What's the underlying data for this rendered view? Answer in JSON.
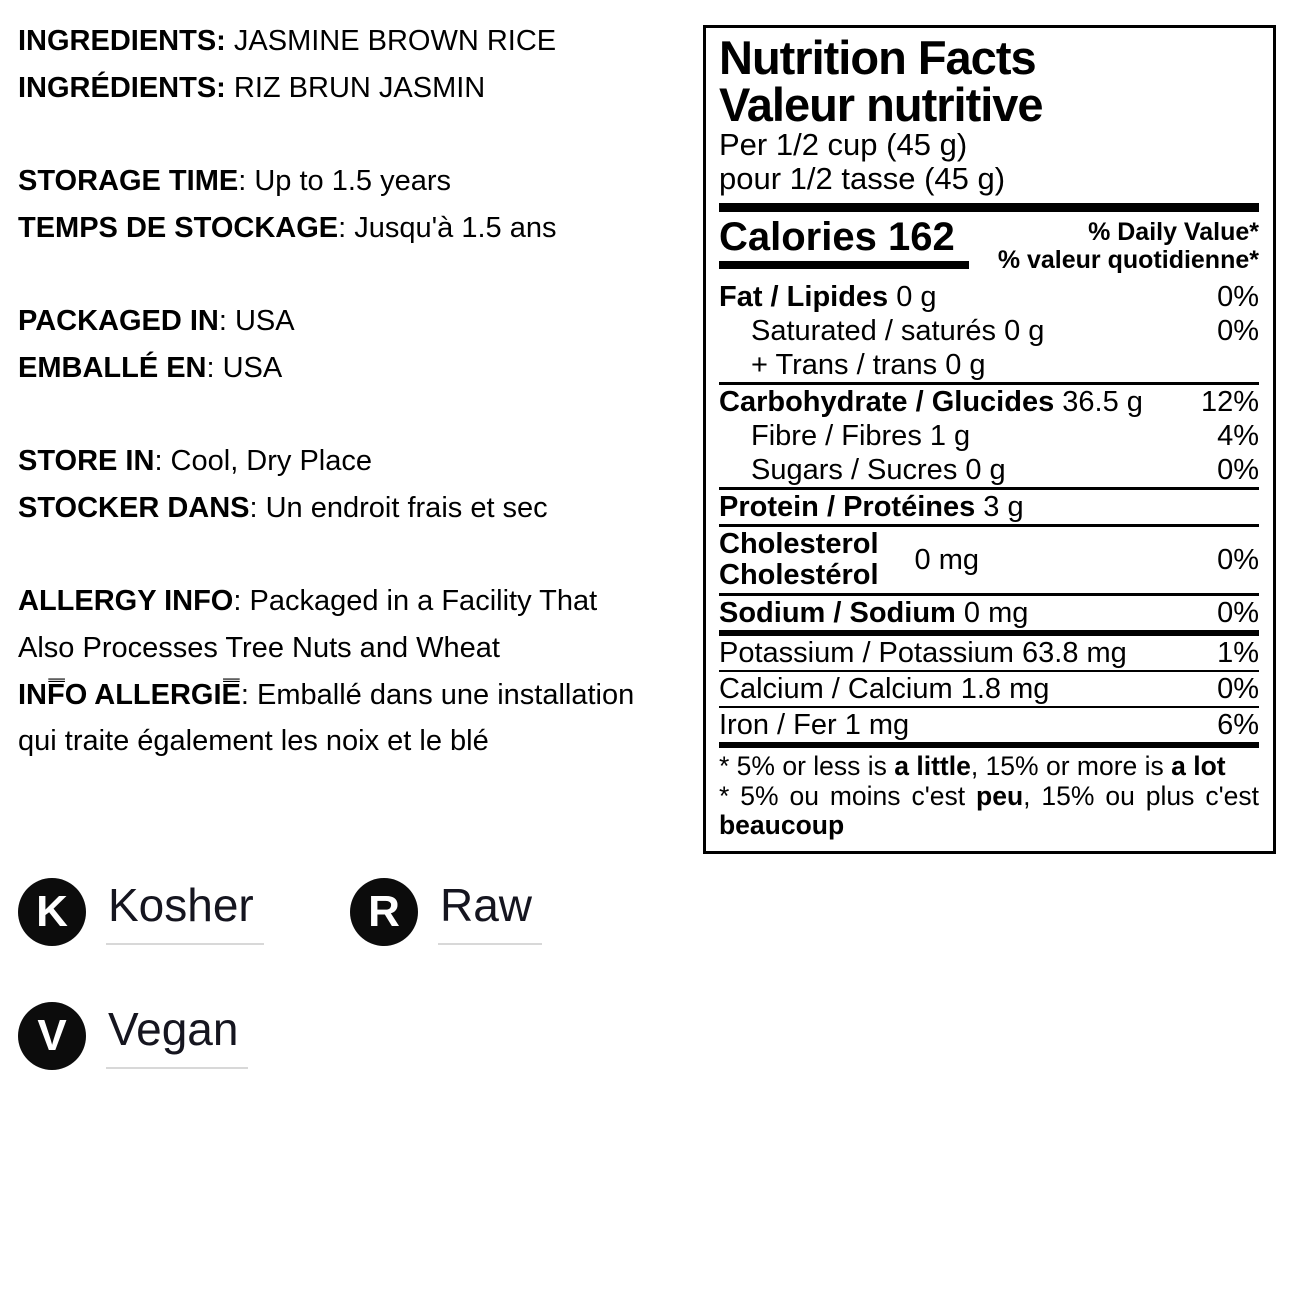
{
  "info": {
    "rows": [
      {
        "label": "INGREDIENTS:",
        "value": " JASMINE BROWN RICE"
      },
      {
        "label": "INGRÉDIENTS:",
        "value": " RIZ BRUN JASMIN"
      },
      {
        "label": "STORAGE TIME",
        "value": ": Up to 1.5 years"
      },
      {
        "label": "TEMPS DE STOCKAGE",
        "value": ": Jusqu'à 1.5 ans"
      },
      {
        "label": "PACKAGED IN",
        "value": ": USA"
      },
      {
        "label": "EMBALLÉ EN",
        "value": ": USA"
      },
      {
        "label": "STORE IN",
        "value": ": Cool, Dry Place"
      },
      {
        "label": "STOCKER DANS",
        "value": ": Un endroit frais et sec"
      }
    ],
    "allergy": {
      "en_label": "ALLERGY INFO",
      "en_rest": ": Packaged in a Facility That",
      "en_line2": "Also Processes Tree Nuts and Wheat",
      "fr_label": "INF̿O ALLERGIE̿",
      "fr_rest": ": Emballé dans une installation",
      "fr_line2": "qui traite également les noix et le blé"
    }
  },
  "nutrition": {
    "title_en": "Nutrition Facts",
    "title_fr": "Valeur nutritive",
    "serving_en": "Per 1/2 cup (45 g)",
    "serving_fr": "pour 1/2 tasse (45 g)",
    "calories_label": "Calories",
    "calories_value": "162",
    "dv_header_en": "% Daily Value*",
    "dv_header_fr": "% valeur quotidienne*",
    "rows": [
      {
        "b": "Fat / Lipides",
        "r": " 0 g",
        "dv": "0%"
      },
      {
        "b": "",
        "r": "Saturated / saturés 0 g",
        "dv": "0%"
      },
      {
        "b": "",
        "r": "+ Trans / trans 0 g",
        "dv": ""
      },
      {
        "b": "Carbohydrate / Glucides",
        "r": " 36.5 g",
        "dv": "12%"
      },
      {
        "b": "",
        "r": "Fibre / Fibres 1 g",
        "dv": "4%"
      },
      {
        "b": "",
        "r": "Sugars / Sucres 0 g",
        "dv": "0%"
      },
      {
        "b": "Protein / Protéines",
        "r": " 3 g",
        "dv": ""
      },
      {
        "b": "Sodium / Sodium",
        "r": " 0 mg",
        "dv": "0%"
      },
      {
        "b": "",
        "r": "Potassium / Potassium 63.8 mg",
        "dv": "1%"
      },
      {
        "b": "",
        "r": "Calcium / Calcium 1.8 mg",
        "dv": "0%"
      },
      {
        "b": "",
        "r": "Iron / Fer 1 mg",
        "dv": "6%"
      }
    ],
    "cholesterol": {
      "line1": "Cholesterol",
      "line2": "Cholestérol",
      "amount": "0 mg",
      "dv": "0%"
    },
    "footnote": {
      "en_pre": "* 5% or less is ",
      "en_b1": "a little",
      "en_mid": ", 15% or more is ",
      "en_b2": "a lot",
      "fr_pre": "* 5% ou moins c'est ",
      "fr_b1": "peu",
      "fr_mid": ", 15% ou plus c'est",
      "fr_b3": "beaucoup"
    }
  },
  "badges": [
    {
      "letter": "K",
      "label": "Kosher"
    },
    {
      "letter": "R",
      "label": "Raw"
    },
    {
      "letter": "V",
      "label": "Vegan"
    }
  ],
  "colors": {
    "ink": "#000000",
    "badge_bg": "#0c0c0c",
    "badge_label": "#15151f",
    "underline": "#d8d8d8"
  }
}
